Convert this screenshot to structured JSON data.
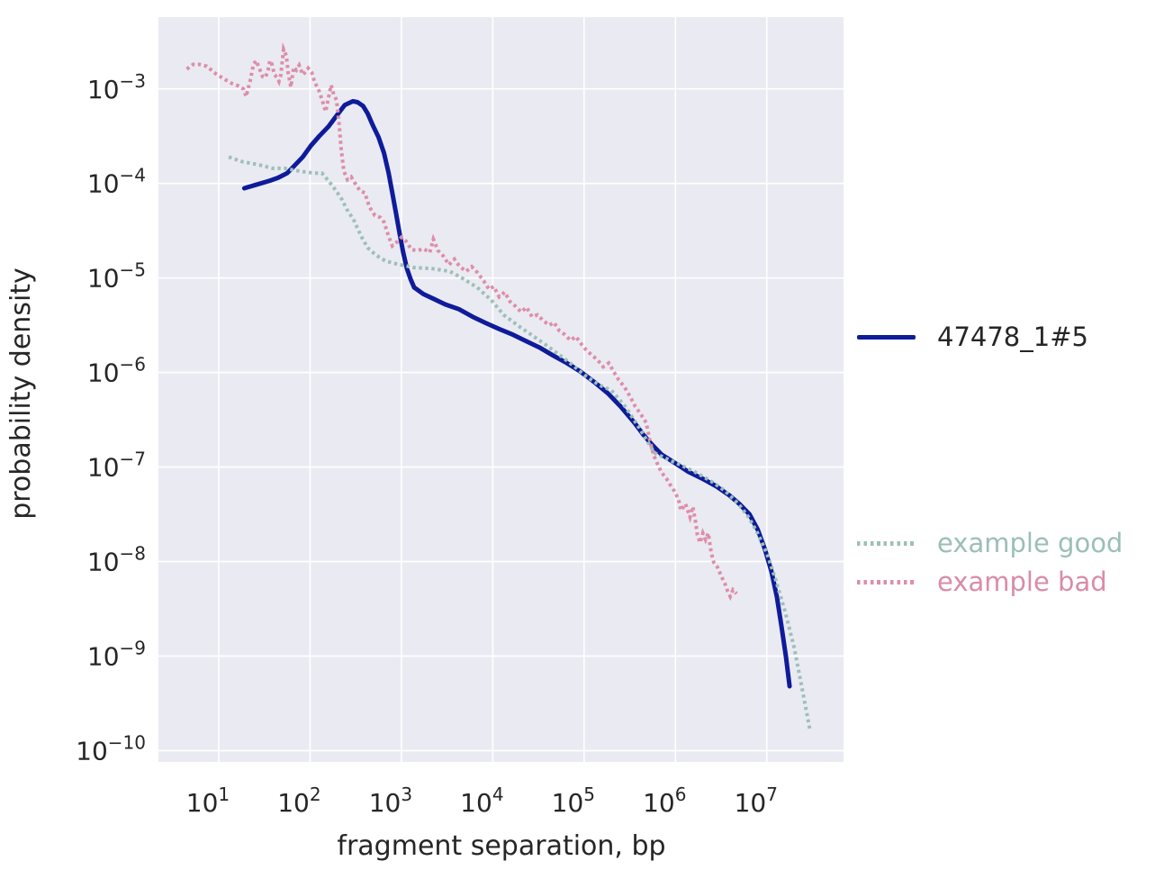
{
  "figure": {
    "background": "#ffffff",
    "plot_background": "#eaeaf2",
    "grid_color": "#ffffff",
    "text_color": "#262626"
  },
  "chart_data": {
    "type": "line",
    "title": "",
    "xlabel": "fragment separation, bp",
    "ylabel": "probability density",
    "x_scale": "log",
    "y_scale": "log",
    "grid": "on",
    "legend_position": "right-outside",
    "x_tick_exponents": [
      1,
      2,
      3,
      4,
      5,
      6,
      7
    ],
    "y_tick_exponents": [
      -3,
      -4,
      -5,
      -6,
      -7,
      -8,
      -9,
      -10
    ],
    "xlim_log10": [
      0.34,
      7.84
    ],
    "ylim_log10": [
      -10.12,
      -2.24
    ],
    "series": [
      {
        "name": "47478_1#5",
        "color": "#0e1b9a",
        "style": "solid",
        "points_log10": [
          [
            1.28,
            -4.05
          ],
          [
            1.42,
            -4.01
          ],
          [
            1.56,
            -3.97
          ],
          [
            1.65,
            -3.94
          ],
          [
            1.75,
            -3.89
          ],
          [
            1.83,
            -3.81
          ],
          [
            1.92,
            -3.72
          ],
          [
            2.01,
            -3.6
          ],
          [
            2.1,
            -3.5
          ],
          [
            2.2,
            -3.4
          ],
          [
            2.3,
            -3.27
          ],
          [
            2.38,
            -3.17
          ],
          [
            2.47,
            -3.13
          ],
          [
            2.52,
            -3.14
          ],
          [
            2.58,
            -3.18
          ],
          [
            2.63,
            -3.26
          ],
          [
            2.69,
            -3.39
          ],
          [
            2.75,
            -3.51
          ],
          [
            2.81,
            -3.68
          ],
          [
            2.86,
            -3.89
          ],
          [
            2.9,
            -4.1
          ],
          [
            2.94,
            -4.31
          ],
          [
            2.98,
            -4.53
          ],
          [
            3.02,
            -4.73
          ],
          [
            3.06,
            -4.9
          ],
          [
            3.1,
            -5.01
          ],
          [
            3.14,
            -5.1
          ],
          [
            3.24,
            -5.17
          ],
          [
            3.35,
            -5.22
          ],
          [
            3.48,
            -5.28
          ],
          [
            3.63,
            -5.33
          ],
          [
            3.78,
            -5.41
          ],
          [
            3.93,
            -5.48
          ],
          [
            4.07,
            -5.54
          ],
          [
            4.22,
            -5.6
          ],
          [
            4.37,
            -5.67
          ],
          [
            4.52,
            -5.74
          ],
          [
            4.66,
            -5.82
          ],
          [
            4.81,
            -5.9
          ],
          [
            4.96,
            -5.99
          ],
          [
            5.11,
            -6.1
          ],
          [
            5.26,
            -6.22
          ],
          [
            5.4,
            -6.36
          ],
          [
            5.55,
            -6.53
          ],
          [
            5.65,
            -6.66
          ],
          [
            5.75,
            -6.77
          ],
          [
            5.85,
            -6.87
          ],
          [
            6.0,
            -6.96
          ],
          [
            6.14,
            -7.05
          ],
          [
            6.29,
            -7.12
          ],
          [
            6.44,
            -7.2
          ],
          [
            6.59,
            -7.3
          ],
          [
            6.7,
            -7.39
          ],
          [
            6.81,
            -7.5
          ],
          [
            6.9,
            -7.66
          ],
          [
            6.98,
            -7.87
          ],
          [
            7.05,
            -8.1
          ],
          [
            7.11,
            -8.37
          ],
          [
            7.16,
            -8.68
          ],
          [
            7.21,
            -9.01
          ],
          [
            7.25,
            -9.32
          ]
        ]
      },
      {
        "name": "example good",
        "color": "#9dc0b8",
        "style": "dotted",
        "points_log10": [
          [
            1.11,
            -3.72
          ],
          [
            1.26,
            -3.77
          ],
          [
            1.43,
            -3.8
          ],
          [
            1.59,
            -3.84
          ],
          [
            1.72,
            -3.84
          ],
          [
            1.89,
            -3.87
          ],
          [
            2.04,
            -3.89
          ],
          [
            2.13,
            -3.89
          ],
          [
            2.2,
            -3.97
          ],
          [
            2.25,
            -4.03
          ],
          [
            2.3,
            -4.1
          ],
          [
            2.35,
            -4.17
          ],
          [
            2.4,
            -4.27
          ],
          [
            2.48,
            -4.39
          ],
          [
            2.56,
            -4.56
          ],
          [
            2.63,
            -4.68
          ],
          [
            2.7,
            -4.74
          ],
          [
            2.77,
            -4.79
          ],
          [
            2.83,
            -4.82
          ],
          [
            2.9,
            -4.84
          ],
          [
            2.99,
            -4.86
          ],
          [
            3.14,
            -4.89
          ],
          [
            3.33,
            -4.9
          ],
          [
            3.53,
            -4.93
          ],
          [
            3.68,
            -5.01
          ],
          [
            3.83,
            -5.1
          ],
          [
            3.98,
            -5.23
          ],
          [
            4.12,
            -5.39
          ],
          [
            4.27,
            -5.5
          ],
          [
            4.42,
            -5.6
          ],
          [
            4.57,
            -5.7
          ],
          [
            4.71,
            -5.8
          ],
          [
            4.86,
            -5.91
          ],
          [
            5.01,
            -6.03
          ],
          [
            5.16,
            -6.13
          ],
          [
            5.3,
            -6.19
          ],
          [
            5.45,
            -6.36
          ],
          [
            5.6,
            -6.58
          ],
          [
            5.77,
            -6.85
          ],
          [
            5.92,
            -6.92
          ],
          [
            6.06,
            -6.98
          ],
          [
            6.21,
            -7.05
          ],
          [
            6.39,
            -7.15
          ],
          [
            6.54,
            -7.25
          ],
          [
            6.69,
            -7.39
          ],
          [
            6.8,
            -7.53
          ],
          [
            6.9,
            -7.7
          ],
          [
            7.0,
            -7.91
          ],
          [
            7.1,
            -8.2
          ],
          [
            7.2,
            -8.53
          ],
          [
            7.3,
            -8.91
          ],
          [
            7.38,
            -9.31
          ],
          [
            7.47,
            -9.77
          ]
        ]
      },
      {
        "name": "example bad",
        "color": "#dd8ea8",
        "style": "dotted",
        "points_log10": [
          [
            0.65,
            -2.79
          ],
          [
            0.72,
            -2.74
          ],
          [
            0.79,
            -2.74
          ],
          [
            0.87,
            -2.76
          ],
          [
            0.97,
            -2.84
          ],
          [
            1.05,
            -2.89
          ],
          [
            1.14,
            -2.94
          ],
          [
            1.22,
            -2.97
          ],
          [
            1.27,
            -3.0
          ],
          [
            1.3,
            -3.08
          ],
          [
            1.35,
            -2.89
          ],
          [
            1.38,
            -2.74
          ],
          [
            1.41,
            -2.7
          ],
          [
            1.44,
            -2.77
          ],
          [
            1.48,
            -2.87
          ],
          [
            1.51,
            -2.88
          ],
          [
            1.54,
            -2.8
          ],
          [
            1.56,
            -2.7
          ],
          [
            1.58,
            -2.73
          ],
          [
            1.61,
            -2.85
          ],
          [
            1.64,
            -2.88
          ],
          [
            1.66,
            -2.92
          ],
          [
            1.68,
            -2.85
          ],
          [
            1.71,
            -2.58
          ],
          [
            1.74,
            -2.65
          ],
          [
            1.76,
            -2.83
          ],
          [
            1.79,
            -2.98
          ],
          [
            1.82,
            -2.77
          ],
          [
            1.85,
            -2.8
          ],
          [
            1.88,
            -2.75
          ],
          [
            1.92,
            -2.85
          ],
          [
            1.95,
            -2.82
          ],
          [
            1.98,
            -2.78
          ],
          [
            2.02,
            -2.83
          ],
          [
            2.05,
            -2.93
          ],
          [
            2.09,
            -3.0
          ],
          [
            2.13,
            -3.11
          ],
          [
            2.17,
            -3.24
          ],
          [
            2.2,
            -3.1
          ],
          [
            2.23,
            -2.96
          ],
          [
            2.26,
            -3.06
          ],
          [
            2.29,
            -3.12
          ],
          [
            2.32,
            -3.39
          ],
          [
            2.34,
            -3.63
          ],
          [
            2.37,
            -3.87
          ],
          [
            2.41,
            -3.96
          ],
          [
            2.45,
            -3.93
          ],
          [
            2.5,
            -4.01
          ],
          [
            2.55,
            -4.08
          ],
          [
            2.6,
            -4.1
          ],
          [
            2.65,
            -4.25
          ],
          [
            2.71,
            -4.34
          ],
          [
            2.77,
            -4.36
          ],
          [
            2.81,
            -4.41
          ],
          [
            2.86,
            -4.56
          ],
          [
            2.9,
            -4.66
          ],
          [
            2.95,
            -4.62
          ],
          [
            3.0,
            -4.57
          ],
          [
            3.05,
            -4.61
          ],
          [
            3.11,
            -4.7
          ],
          [
            3.18,
            -4.71
          ],
          [
            3.24,
            -4.69
          ],
          [
            3.31,
            -4.73
          ],
          [
            3.35,
            -4.59
          ],
          [
            3.4,
            -4.71
          ],
          [
            3.46,
            -4.77
          ],
          [
            3.52,
            -4.86
          ],
          [
            3.58,
            -4.8
          ],
          [
            3.64,
            -4.88
          ],
          [
            3.71,
            -4.93
          ],
          [
            3.77,
            -4.88
          ],
          [
            3.83,
            -4.94
          ],
          [
            3.9,
            -5.03
          ],
          [
            3.96,
            -5.12
          ],
          [
            4.01,
            -5.09
          ],
          [
            4.07,
            -5.2
          ],
          [
            4.13,
            -5.15
          ],
          [
            4.19,
            -5.25
          ],
          [
            4.25,
            -5.3
          ],
          [
            4.31,
            -5.36
          ],
          [
            4.37,
            -5.31
          ],
          [
            4.43,
            -5.41
          ],
          [
            4.49,
            -5.39
          ],
          [
            4.55,
            -5.45
          ],
          [
            4.62,
            -5.5
          ],
          [
            4.67,
            -5.47
          ],
          [
            4.73,
            -5.56
          ],
          [
            4.79,
            -5.6
          ],
          [
            4.85,
            -5.66
          ],
          [
            4.91,
            -5.62
          ],
          [
            4.97,
            -5.7
          ],
          [
            5.03,
            -5.77
          ],
          [
            5.09,
            -5.82
          ],
          [
            5.15,
            -5.87
          ],
          [
            5.21,
            -5.94
          ],
          [
            5.27,
            -5.9
          ],
          [
            5.33,
            -6.0
          ],
          [
            5.38,
            -6.08
          ],
          [
            5.44,
            -6.15
          ],
          [
            5.5,
            -6.25
          ],
          [
            5.56,
            -6.36
          ],
          [
            5.62,
            -6.44
          ],
          [
            5.68,
            -6.53
          ],
          [
            5.72,
            -6.72
          ],
          [
            5.76,
            -6.87
          ],
          [
            5.8,
            -6.96
          ],
          [
            5.85,
            -7.06
          ],
          [
            5.9,
            -7.12
          ],
          [
            5.95,
            -7.2
          ],
          [
            6.0,
            -7.27
          ],
          [
            6.04,
            -7.37
          ],
          [
            6.06,
            -7.46
          ],
          [
            6.11,
            -7.39
          ],
          [
            6.16,
            -7.53
          ],
          [
            6.19,
            -7.42
          ],
          [
            6.22,
            -7.58
          ],
          [
            6.24,
            -7.72
          ],
          [
            6.27,
            -7.8
          ],
          [
            6.3,
            -7.7
          ],
          [
            6.33,
            -7.77
          ],
          [
            6.36,
            -7.7
          ],
          [
            6.39,
            -7.9
          ],
          [
            6.42,
            -8.01
          ],
          [
            6.46,
            -8.06
          ],
          [
            6.5,
            -8.15
          ],
          [
            6.54,
            -8.23
          ],
          [
            6.57,
            -8.31
          ],
          [
            6.6,
            -8.37
          ],
          [
            6.63,
            -8.3
          ],
          [
            6.67,
            -8.34
          ]
        ]
      }
    ],
    "legend": {
      "entries": [
        {
          "label": "47478_1#5",
          "text_color": "#262626",
          "line_color": "#0e1b9a",
          "line_style": "solid"
        },
        {
          "label": "example good",
          "text_color": "#9abfb7",
          "line_color": "#9dc0b8",
          "line_style": "dotted"
        },
        {
          "label": "example bad",
          "text_color": "#d98ca6",
          "line_color": "#dd8ea8",
          "line_style": "dotted"
        }
      ]
    }
  }
}
